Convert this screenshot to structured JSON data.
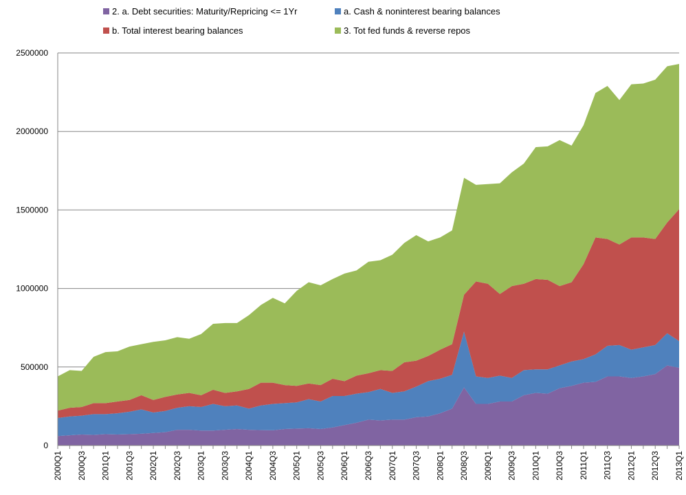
{
  "chart_data": {
    "type": "stacked-area",
    "categories": [
      "2000Q1",
      null,
      "2000Q3",
      null,
      "2001Q1",
      null,
      "2001Q3",
      null,
      "2002Q1",
      null,
      "2002Q3",
      null,
      "2003Q1",
      null,
      "2003Q3",
      null,
      "2004Q1",
      null,
      "2004Q3",
      null,
      "2005Q1",
      null,
      "2005Q3",
      null,
      "2006Q1",
      null,
      "2006Q3",
      null,
      "2007Q1",
      null,
      "2007Q3",
      null,
      "2008Q1",
      null,
      "2008Q3",
      null,
      "2009Q1",
      null,
      "2009Q3",
      null,
      "2010Q1",
      null,
      "2010Q3",
      null,
      "2011Q1",
      null,
      "2011Q3",
      null,
      "2012Q1",
      null,
      "2012Q3",
      null,
      "2013Q1"
    ],
    "series": [
      {
        "name": "2. a. Debt securities: Maturity/Repricing <= 1Yr",
        "color": "#8064a2",
        "values": [
          60000,
          65000,
          70000,
          68000,
          72000,
          70000,
          72000,
          75000,
          80000,
          85000,
          100000,
          100000,
          95000,
          95000,
          100000,
          105000,
          100000,
          98000,
          97000,
          105000,
          108000,
          110000,
          105000,
          115000,
          130000,
          145000,
          165000,
          160000,
          165000,
          165000,
          180000,
          185000,
          205000,
          235000,
          370000,
          265000,
          265000,
          280000,
          280000,
          320000,
          335000,
          330000,
          365000,
          380000,
          400000,
          405000,
          440000,
          440000,
          430000,
          440000,
          455000,
          510000,
          495000
        ]
      },
      {
        "name": "a. Cash & noninterest bearing balances",
        "color": "#4f81bd",
        "values": [
          115000,
          120000,
          120000,
          132000,
          128000,
          135000,
          143000,
          155000,
          130000,
          135000,
          140000,
          150000,
          150000,
          170000,
          150000,
          150000,
          135000,
          157000,
          168000,
          165000,
          167000,
          185000,
          175000,
          200000,
          185000,
          185000,
          175000,
          200000,
          170000,
          180000,
          195000,
          225000,
          220000,
          215000,
          355000,
          175000,
          165000,
          165000,
          150000,
          160000,
          150000,
          155000,
          145000,
          155000,
          150000,
          175000,
          195000,
          200000,
          180000,
          185000,
          185000,
          205000,
          170000
        ]
      },
      {
        "name": "b. Total interest bearing balances",
        "color": "#c0504d",
        "values": [
          47000,
          55000,
          55000,
          70000,
          70000,
          75000,
          75000,
          90000,
          80000,
          90000,
          85000,
          85000,
          75000,
          90000,
          85000,
          90000,
          125000,
          145000,
          135000,
          115000,
          105000,
          100000,
          105000,
          110000,
          95000,
          115000,
          120000,
          120000,
          140000,
          185000,
          165000,
          160000,
          185000,
          195000,
          235000,
          605000,
          600000,
          520000,
          585000,
          550000,
          575000,
          570000,
          505000,
          505000,
          605000,
          745000,
          680000,
          640000,
          715000,
          700000,
          675000,
          705000,
          840000
        ]
      },
      {
        "name": "3. Tot fed funds & reverse repos",
        "color": "#9bbb59",
        "values": [
          218000,
          240000,
          230000,
          295000,
          325000,
          320000,
          340000,
          325000,
          370000,
          360000,
          365000,
          345000,
          390000,
          420000,
          445000,
          435000,
          470000,
          495000,
          540000,
          520000,
          605000,
          645000,
          635000,
          635000,
          685000,
          670000,
          710000,
          700000,
          740000,
          760000,
          800000,
          730000,
          715000,
          725000,
          745000,
          615000,
          635000,
          705000,
          725000,
          765000,
          840000,
          850000,
          930000,
          870000,
          885000,
          920000,
          975000,
          920000,
          975000,
          980000,
          1015000,
          995000,
          925000
        ]
      }
    ],
    "ylim": [
      0,
      2500000
    ],
    "yticks": [
      0,
      500000,
      1000000,
      1500000,
      2000000,
      2500000
    ],
    "grid": true
  }
}
